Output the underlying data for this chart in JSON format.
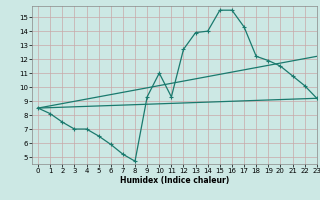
{
  "background_color": "#cce8e4",
  "grid_color": "#c8a8a8",
  "line_color": "#1a7a6e",
  "line1_x": [
    0,
    1,
    2,
    3,
    4,
    5,
    6,
    7,
    8,
    9,
    10,
    11,
    12,
    13,
    14,
    15,
    16,
    17,
    18,
    19,
    20,
    21,
    22,
    23
  ],
  "line1_y": [
    8.5,
    8.1,
    7.5,
    7.0,
    7.0,
    6.5,
    5.9,
    5.2,
    4.7,
    9.3,
    11.0,
    9.3,
    12.7,
    13.9,
    14.0,
    15.5,
    15.5,
    14.3,
    12.2,
    11.9,
    11.5,
    10.8,
    10.1,
    9.2
  ],
  "line2_x": [
    0,
    23
  ],
  "line2_y": [
    8.5,
    9.2
  ],
  "line3_x": [
    0,
    23
  ],
  "line3_y": [
    8.5,
    12.2
  ],
  "xlabel": "Humidex (Indice chaleur)",
  "xlim": [
    -0.5,
    23
  ],
  "ylim": [
    4.5,
    15.8
  ],
  "yticks": [
    5,
    6,
    7,
    8,
    9,
    10,
    11,
    12,
    13,
    14,
    15
  ],
  "xticks": [
    0,
    1,
    2,
    3,
    4,
    5,
    6,
    7,
    8,
    9,
    10,
    11,
    12,
    13,
    14,
    15,
    16,
    17,
    18,
    19,
    20,
    21,
    22,
    23
  ],
  "xlabel_fontsize": 5.5,
  "tick_fontsize": 5.0
}
